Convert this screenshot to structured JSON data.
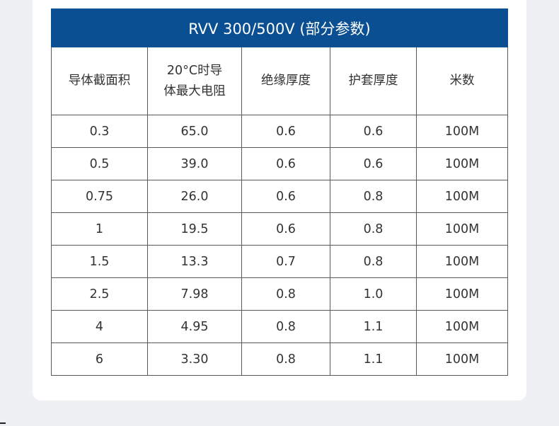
{
  "table": {
    "title": "RVV 300/500V (部分参数)",
    "headers": [
      "导体截面积",
      "20°C时导体最大电阻",
      "绝缘厚度",
      "护套厚度",
      "米数"
    ],
    "rows": [
      [
        "0.3",
        "65.0",
        "0.6",
        "0.6",
        "100M"
      ],
      [
        "0.5",
        "39.0",
        "0.6",
        "0.6",
        "100M"
      ],
      [
        "0.75",
        "26.0",
        "0.6",
        "0.8",
        "100M"
      ],
      [
        "1",
        "19.5",
        "0.6",
        "0.8",
        "100M"
      ],
      [
        "1.5",
        "13.3",
        "0.7",
        "0.8",
        "100M"
      ],
      [
        "2.5",
        "7.98",
        "0.8",
        "1.0",
        "100M"
      ],
      [
        "4",
        "4.95",
        "0.8",
        "1.1",
        "100M"
      ],
      [
        "6",
        "3.30",
        "0.8",
        "1.1",
        "100M"
      ]
    ]
  },
  "colors": {
    "header_bg": "#0a4f91",
    "page_bg": "#eef0f4",
    "card_bg": "#ffffff"
  }
}
